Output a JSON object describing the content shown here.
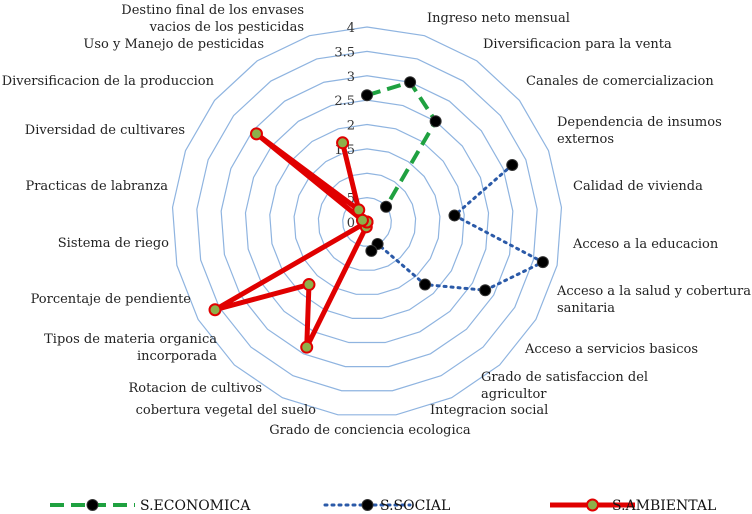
{
  "chart_data": {
    "type": "radar",
    "rlim": [
      0,
      4
    ],
    "ticks": [
      "0",
      "0.5",
      "1",
      "1.5",
      "2",
      "2.5",
      "3",
      "3.5",
      "4"
    ],
    "grid": true,
    "legend_position": "bottom",
    "axes": [
      [
        "Ingreso neto mensual"
      ],
      [
        "Diversificacion para la venta"
      ],
      [
        "Canales de comercializacion"
      ],
      [
        "Dependencia de insumos",
        "externos"
      ],
      [
        "Calidad de vivienda"
      ],
      [
        "Acceso a la educacion"
      ],
      [
        "Acceso a la  salud y cobertura",
        "sanitaria"
      ],
      [
        "Acceso a servicios basicos"
      ],
      [
        "Grado de satisfaccion del",
        "agricultor"
      ],
      [
        "Integracion social"
      ],
      [
        "Grado de conciencia ecologica"
      ],
      [
        "cobertura vegetal del suelo"
      ],
      [
        "Rotacion de cultivos"
      ],
      [
        "Tipos de materia organica",
        "incorporada"
      ],
      [
        "Porcentaje de pendiente"
      ],
      [
        "Sistema de riego"
      ],
      [
        "Practicas de labranza"
      ],
      [
        "Diversidad de cultivares"
      ],
      [
        "Diversificacion de la produccion"
      ],
      [
        "Uso y Manejo de pesticidas"
      ],
      [
        "Destino final de los envases",
        "vacios de los pesticidas"
      ]
    ],
    "series": [
      {
        "name": "S.ECONOMICA",
        "color": "#1fa140",
        "marker_fill": "#000000",
        "line_style": "dashed",
        "values": [
          {
            "axis": 0,
            "value": 2.6
          },
          {
            "axis": 1,
            "value": 3.0
          },
          {
            "axis": 2,
            "value": 2.5
          },
          {
            "axis": 3,
            "value": 0.5
          }
        ]
      },
      {
        "name": "S.SOCIAL",
        "color": "#2b5aa8",
        "marker_fill": "#000000",
        "line_style": "dotted",
        "values": [
          {
            "axis": 4,
            "value": 3.2
          },
          {
            "axis": 5,
            "value": 1.8
          },
          {
            "axis": 6,
            "value": 3.7
          },
          {
            "axis": 7,
            "value": 2.8
          },
          {
            "axis": 8,
            "value": 1.75
          },
          {
            "axis": 9,
            "value": 0.5
          },
          {
            "axis": 10,
            "value": 0.6
          }
        ]
      },
      {
        "name": "S.AMBIENTAL",
        "color": "#e00000",
        "marker_fill": "#8db04a",
        "line_style": "solid",
        "values": [
          {
            "axis": 11,
            "value": 0.1
          },
          {
            "axis": 12,
            "value": 2.85
          },
          {
            "axis": 13,
            "value": 1.75
          },
          {
            "axis": 14,
            "value": 3.6
          },
          {
            "axis": 15,
            "value": 0.0
          },
          {
            "axis": 16,
            "value": 0.0
          },
          {
            "axis": 17,
            "value": 0.1
          },
          {
            "axis": 18,
            "value": 2.9
          },
          {
            "axis": 19,
            "value": 0.3
          },
          {
            "axis": 20,
            "value": 1.7
          }
        ]
      }
    ]
  }
}
